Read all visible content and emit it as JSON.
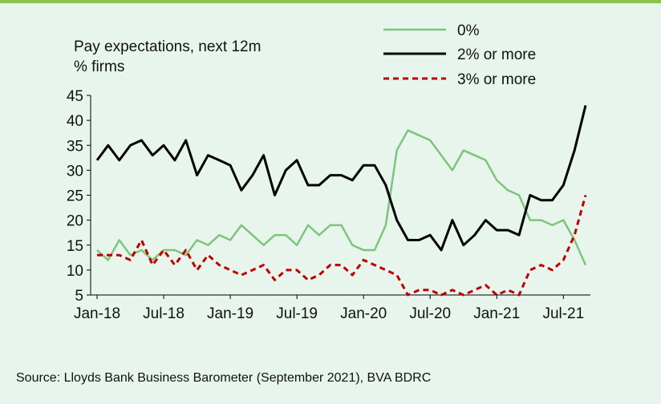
{
  "colors": {
    "background": "#e8f5ec",
    "top_rule": "#8bc34a",
    "series_0pct": "#7dc47d",
    "series_2pct": "#000000",
    "series_3pct": "#c00000"
  },
  "source": "Source: Lloyds Bank Business Barometer (September 2021), BVA BDRC",
  "chart_data": {
    "type": "line",
    "title": "Pay expectations, next 12m",
    "ylabel": "% firms",
    "xlabel": "",
    "ylim": [
      5,
      45
    ],
    "yticks": [
      5,
      10,
      15,
      20,
      25,
      30,
      35,
      40,
      45
    ],
    "x": [
      "2018-01",
      "2018-02",
      "2018-03",
      "2018-04",
      "2018-05",
      "2018-06",
      "2018-07",
      "2018-08",
      "2018-09",
      "2018-10",
      "2018-11",
      "2018-12",
      "2019-01",
      "2019-02",
      "2019-03",
      "2019-04",
      "2019-05",
      "2019-06",
      "2019-07",
      "2019-08",
      "2019-09",
      "2019-10",
      "2019-11",
      "2019-12",
      "2020-01",
      "2020-02",
      "2020-03",
      "2020-04",
      "2020-05",
      "2020-06",
      "2020-07",
      "2020-08",
      "2020-09",
      "2020-10",
      "2020-11",
      "2020-12",
      "2021-01",
      "2021-02",
      "2021-03",
      "2021-04",
      "2021-05",
      "2021-06",
      "2021-07",
      "2021-08",
      "2021-09"
    ],
    "xtick_labels": [
      "Jan-18",
      "Jul-18",
      "Jan-19",
      "Jul-19",
      "Jan-20",
      "Jul-20",
      "Jan-21",
      "Jul-21"
    ],
    "xtick_indices": [
      0,
      6,
      12,
      18,
      24,
      30,
      36,
      42
    ],
    "legend_position": "top-right",
    "grid": false,
    "series": [
      {
        "name": "0%",
        "style": "solid",
        "values": [
          14,
          12,
          16,
          13,
          14,
          12,
          14,
          14,
          13,
          16,
          15,
          17,
          16,
          19,
          17,
          15,
          17,
          17,
          15,
          19,
          17,
          19,
          19,
          15,
          14,
          14,
          19,
          34,
          38,
          37,
          36,
          33,
          30,
          34,
          33,
          32,
          28,
          26,
          25,
          20,
          20,
          19,
          20,
          16,
          11
        ]
      },
      {
        "name": "2% or more",
        "style": "solid",
        "values": [
          32,
          35,
          32,
          35,
          36,
          33,
          35,
          32,
          36,
          29,
          33,
          32,
          31,
          26,
          29,
          33,
          25,
          30,
          32,
          27,
          27,
          29,
          29,
          28,
          31,
          31,
          27,
          20,
          16,
          16,
          17,
          14,
          20,
          15,
          17,
          20,
          18,
          18,
          17,
          25,
          24,
          24,
          27,
          34,
          43
        ]
      },
      {
        "name": "3% or more",
        "style": "dashed",
        "values": [
          13,
          13,
          13,
          12,
          16,
          11,
          14,
          11,
          14,
          10,
          13,
          11,
          10,
          9,
          10,
          11,
          8,
          10,
          10,
          8,
          9,
          11,
          11,
          9,
          12,
          11,
          10,
          9,
          5,
          6,
          6,
          5,
          6,
          5,
          6,
          7,
          5,
          6,
          5,
          10,
          11,
          10,
          12,
          17,
          25
        ]
      }
    ]
  }
}
